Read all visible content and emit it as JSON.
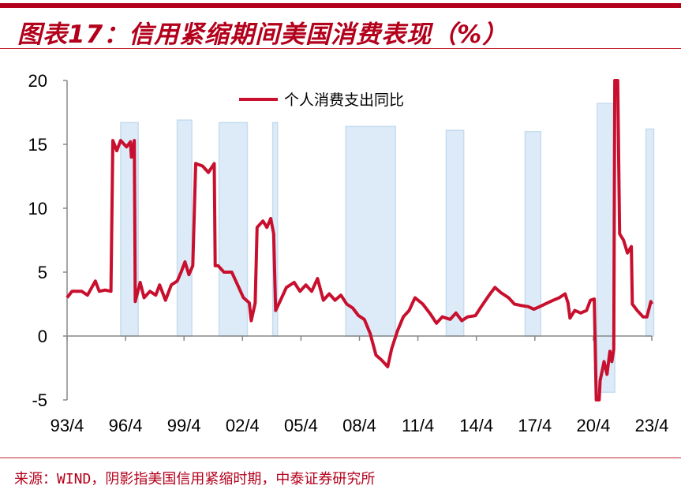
{
  "header": {
    "title": "图表17：信用紧缩期间美国消费表现（%）"
  },
  "footer": {
    "source": "来源：WIND，阴影指美国信用紧缩时期，中泰证券研究所"
  },
  "colors": {
    "line": "#c8102e",
    "shade": "#dcebf7",
    "shade_border": "#c6dcef",
    "accent": "#b3001b"
  },
  "chart_data": {
    "type": "line",
    "title": "信用紧缩期间美国消费表现（%）",
    "xlabel": "",
    "ylabel": "",
    "ylim": [
      -5,
      20
    ],
    "yticks": [
      -5,
      0,
      5,
      10,
      15,
      20
    ],
    "ytick_labels": [
      "-5",
      "0",
      "5",
      "10",
      "15",
      "20"
    ],
    "xlim": [
      1993.25,
      2023.5
    ],
    "xticks": [
      1993.25,
      1996.25,
      1999.25,
      2002.25,
      2005.25,
      2008.25,
      2011.25,
      2014.25,
      2017.25,
      2020.25,
      2023.25
    ],
    "xtick_labels": [
      "93/4",
      "96/4",
      "99/4",
      "02/4",
      "05/4",
      "08/4",
      "11/4",
      "14/4",
      "17/4",
      "20/4",
      "23/4"
    ],
    "legend": {
      "entries": [
        "个人消费支出同比"
      ],
      "placement": "top-center"
    },
    "shaded_periods": [
      {
        "start": 1996.0,
        "end": 1996.9,
        "top": 16.7,
        "bottom": 0
      },
      {
        "start": 1998.9,
        "end": 1999.65,
        "top": 16.9,
        "bottom": 0
      },
      {
        "start": 2001.05,
        "end": 2002.5,
        "top": 16.7,
        "bottom": 0
      },
      {
        "start": 2003.8,
        "end": 2004.05,
        "top": 16.7,
        "bottom": 0
      },
      {
        "start": 2007.55,
        "end": 2010.1,
        "top": 16.4,
        "bottom": 0
      },
      {
        "start": 2012.7,
        "end": 2013.6,
        "top": 16.1,
        "bottom": 0
      },
      {
        "start": 2016.75,
        "end": 2017.55,
        "top": 16.0,
        "bottom": 0
      },
      {
        "start": 2020.45,
        "end": 2021.35,
        "top": 18.2,
        "bottom": -4.4
      },
      {
        "start": 2022.95,
        "end": 2023.35,
        "top": 16.2,
        "bottom": 0
      }
    ],
    "series": [
      {
        "name": "个人消费支出同比",
        "points": [
          [
            1993.25,
            3.0
          ],
          [
            1993.5,
            3.5
          ],
          [
            1994.0,
            3.5
          ],
          [
            1994.3,
            3.2
          ],
          [
            1994.7,
            4.3
          ],
          [
            1994.9,
            3.5
          ],
          [
            1995.2,
            3.6
          ],
          [
            1995.5,
            3.5
          ],
          [
            1995.6,
            15.3
          ],
          [
            1995.8,
            14.5
          ],
          [
            1996.0,
            15.3
          ],
          [
            1996.3,
            14.8
          ],
          [
            1996.5,
            15.2
          ],
          [
            1996.55,
            14.0
          ],
          [
            1996.7,
            15.3
          ],
          [
            1996.75,
            2.7
          ],
          [
            1997.0,
            4.2
          ],
          [
            1997.2,
            3.0
          ],
          [
            1997.5,
            3.5
          ],
          [
            1997.8,
            3.2
          ],
          [
            1998.0,
            4.0
          ],
          [
            1998.3,
            2.8
          ],
          [
            1998.6,
            4.0
          ],
          [
            1998.9,
            4.3
          ],
          [
            1999.1,
            5.0
          ],
          [
            1999.3,
            5.8
          ],
          [
            1999.5,
            4.8
          ],
          [
            1999.7,
            5.5
          ],
          [
            1999.85,
            13.5
          ],
          [
            2000.2,
            13.3
          ],
          [
            2000.5,
            12.8
          ],
          [
            2000.8,
            13.5
          ],
          [
            2000.85,
            5.5
          ],
          [
            2001.0,
            5.5
          ],
          [
            2001.3,
            5.0
          ],
          [
            2001.7,
            5.0
          ],
          [
            2002.0,
            4.0
          ],
          [
            2002.3,
            3.0
          ],
          [
            2002.6,
            2.6
          ],
          [
            2002.7,
            1.2
          ],
          [
            2002.9,
            2.6
          ],
          [
            2003.0,
            8.5
          ],
          [
            2003.3,
            9.0
          ],
          [
            2003.5,
            8.5
          ],
          [
            2003.7,
            9.2
          ],
          [
            2003.85,
            8.0
          ],
          [
            2003.95,
            2.0
          ],
          [
            2004.2,
            2.8
          ],
          [
            2004.5,
            3.8
          ],
          [
            2004.9,
            4.2
          ],
          [
            2005.2,
            3.5
          ],
          [
            2005.5,
            4.0
          ],
          [
            2005.8,
            3.5
          ],
          [
            2006.1,
            4.5
          ],
          [
            2006.4,
            2.8
          ],
          [
            2006.7,
            3.3
          ],
          [
            2007.0,
            2.8
          ],
          [
            2007.3,
            3.2
          ],
          [
            2007.6,
            2.5
          ],
          [
            2007.9,
            2.2
          ],
          [
            2008.2,
            1.6
          ],
          [
            2008.5,
            1.3
          ],
          [
            2008.8,
            0.2
          ],
          [
            2009.1,
            -1.5
          ],
          [
            2009.4,
            -1.9
          ],
          [
            2009.7,
            -2.4
          ],
          [
            2009.9,
            -1.0
          ],
          [
            2010.2,
            0.4
          ],
          [
            2010.5,
            1.5
          ],
          [
            2010.8,
            2.0
          ],
          [
            2011.1,
            3.0
          ],
          [
            2011.5,
            2.5
          ],
          [
            2011.9,
            1.7
          ],
          [
            2012.2,
            1.0
          ],
          [
            2012.5,
            1.5
          ],
          [
            2012.9,
            1.3
          ],
          [
            2013.2,
            1.8
          ],
          [
            2013.5,
            1.2
          ],
          [
            2013.8,
            1.5
          ],
          [
            2014.2,
            1.6
          ],
          [
            2014.5,
            2.3
          ],
          [
            2014.9,
            3.2
          ],
          [
            2015.2,
            3.8
          ],
          [
            2015.5,
            3.4
          ],
          [
            2015.9,
            3.0
          ],
          [
            2016.2,
            2.5
          ],
          [
            2016.5,
            2.4
          ],
          [
            2016.9,
            2.3
          ],
          [
            2017.2,
            2.1
          ],
          [
            2017.5,
            2.3
          ],
          [
            2017.9,
            2.6
          ],
          [
            2018.2,
            2.8
          ],
          [
            2018.5,
            3.0
          ],
          [
            2018.8,
            3.3
          ],
          [
            2018.95,
            2.6
          ],
          [
            2019.05,
            1.4
          ],
          [
            2019.3,
            2.0
          ],
          [
            2019.6,
            1.8
          ],
          [
            2019.9,
            2.0
          ],
          [
            2020.1,
            2.8
          ],
          [
            2020.3,
            2.9
          ],
          [
            2020.4,
            -5.0
          ],
          [
            2020.55,
            -5.0
          ],
          [
            2020.6,
            -3.5
          ],
          [
            2020.8,
            -2.0
          ],
          [
            2020.95,
            -3.0
          ],
          [
            2021.1,
            -1.2
          ],
          [
            2021.2,
            -2.0
          ],
          [
            2021.3,
            -1.0
          ],
          [
            2021.35,
            20.0
          ],
          [
            2021.5,
            20.0
          ],
          [
            2021.6,
            8.0
          ],
          [
            2021.8,
            7.5
          ],
          [
            2022.0,
            6.5
          ],
          [
            2022.2,
            7.0
          ],
          [
            2022.25,
            2.5
          ],
          [
            2022.5,
            2.0
          ],
          [
            2022.8,
            1.5
          ],
          [
            2023.0,
            1.5
          ],
          [
            2023.2,
            2.7
          ],
          [
            2023.25,
            2.5
          ]
        ]
      }
    ]
  }
}
